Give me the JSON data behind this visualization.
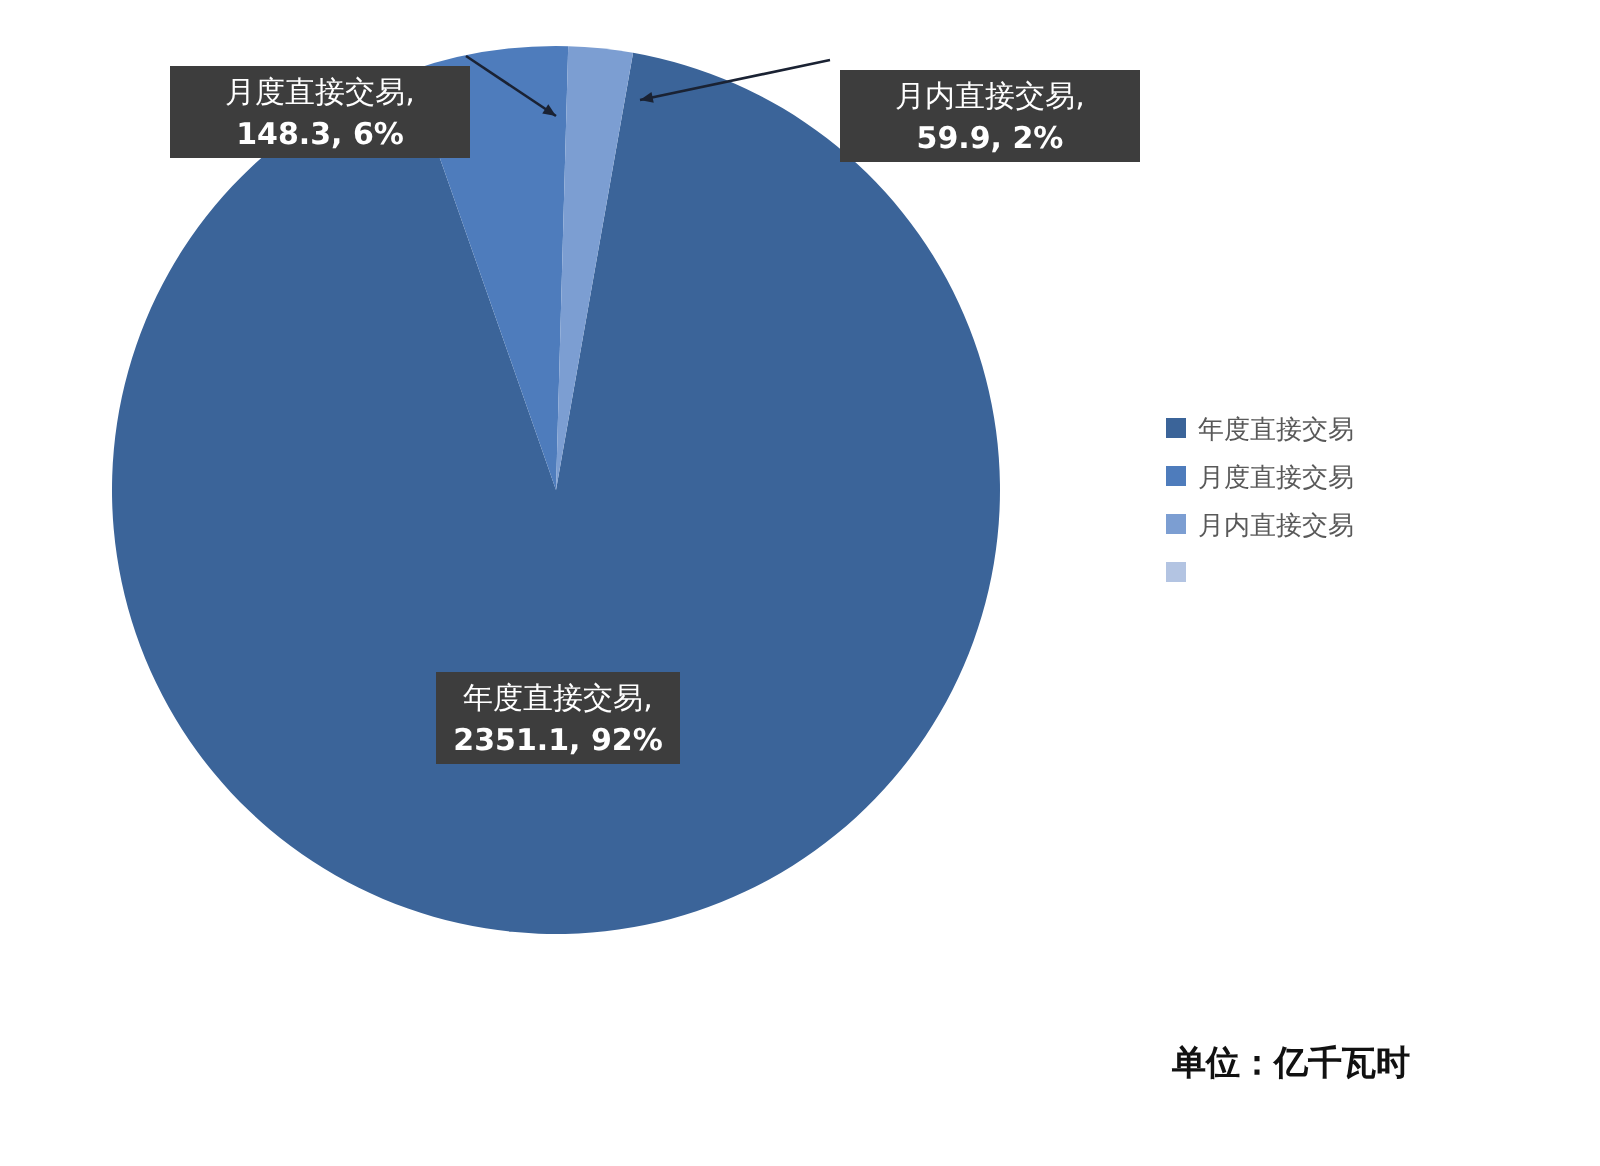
{
  "chart_data": {
    "type": "pie",
    "categories": [
      "年度直接交易",
      "月度直接交易",
      "月内直接交易",
      null
    ],
    "values": [
      2351.1,
      148.3,
      59.9,
      0
    ],
    "colors": [
      "#3b6499",
      "#4e7cbc",
      "#7c9ed2",
      "#b3c4e2"
    ],
    "value_labels": [
      ", 2351.1, 92%",
      ", 148.3, 6%",
      ", 59.9, 2%",
      null
    ],
    "legend": "right",
    "annotations": [
      "单位：亿千瓦时"
    ]
  }
}
